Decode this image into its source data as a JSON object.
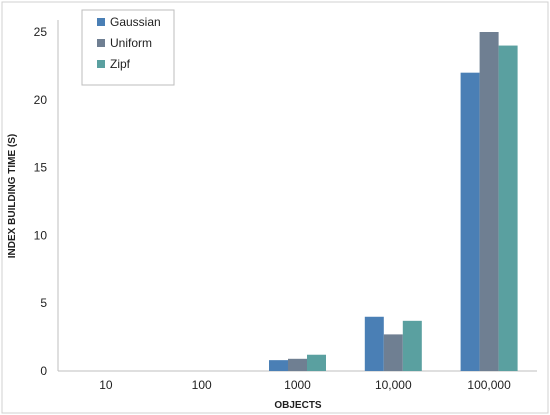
{
  "chart_data": {
    "type": "bar",
    "title": "",
    "xlabel": "OBJECTS",
    "ylabel": "INDEX BUILDING TIME (S)",
    "categories": [
      "10",
      "100",
      "1000",
      "10,000",
      "100,000"
    ],
    "series": [
      {
        "name": "Gaussian",
        "color": "#4a7fb5",
        "values": [
          0,
          0,
          0.8,
          4.0,
          22.0
        ]
      },
      {
        "name": "Uniform",
        "color": "#6f7f92",
        "values": [
          0,
          0,
          0.9,
          2.7,
          25.0
        ]
      },
      {
        "name": "Zipf",
        "color": "#5aa0a0",
        "values": [
          0,
          0,
          1.2,
          3.7,
          24.0
        ]
      }
    ],
    "ylim": [
      0,
      25
    ],
    "yticks": [
      0,
      5,
      10,
      15,
      20,
      25
    ],
    "grid": false,
    "legend_position": "top-left"
  }
}
